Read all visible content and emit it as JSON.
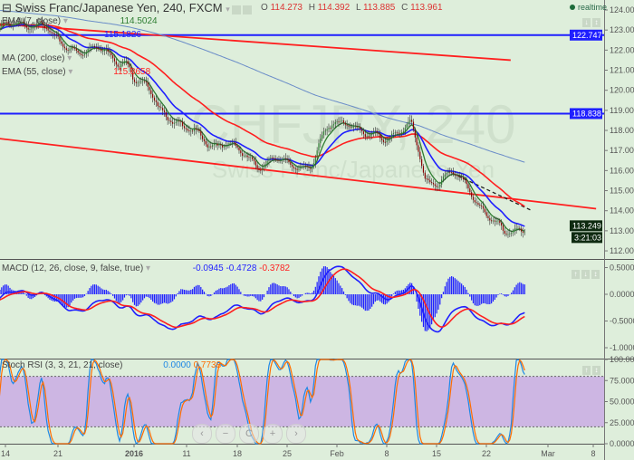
{
  "header": {
    "title": "Swiss Franc/Japanese Yen, 240, FXCM",
    "ohlc": {
      "o_label": "O",
      "o": "114.273",
      "h_label": "H",
      "h": "114.392",
      "l_label": "L",
      "l": "113.885",
      "c_label": "C",
      "c": "113.961"
    },
    "realtime": "realtime"
  },
  "watermark": {
    "symbol": "CHFJPY, 240",
    "name": "Swiss Franc/Japanese Yen"
  },
  "indicators": [
    {
      "label": "EMA (7, close)",
      "value": "114.5024",
      "color": "#2e7d32"
    },
    {
      "label": "",
      "value": "115.1826",
      "color": "#1f1fff"
    },
    {
      "label": "MA (200, close)",
      "value": "",
      "color": "#6a8cc8"
    },
    {
      "label": "EMA (55, close)",
      "value": "115.8658",
      "color": "#ff1f1f"
    }
  ],
  "macd": {
    "label": "MACD (12, 26, close, 9, false, true)",
    "values": [
      "-0.0945",
      "-0.4728",
      "-0.3782"
    ],
    "colors": [
      "#1f1fff",
      "#1f1fff",
      "#ff1f1f"
    ]
  },
  "stoch": {
    "label": "Stoch RSI (3, 3, 21, 21, close)",
    "values": [
      "0.0000",
      "0.7738"
    ],
    "colors": [
      "#1e88e5",
      "#ff6d00"
    ]
  },
  "price_axis": {
    "ticks": [
      "124.000",
      "123.000",
      "122.000",
      "121.000",
      "120.000",
      "119.000",
      "118.000",
      "117.000",
      "116.000",
      "115.000",
      "114.000",
      "113.000",
      "112.000"
    ],
    "hlines": [
      {
        "value": "122.747",
        "color": "#1f1fff"
      },
      {
        "value": "118.838",
        "color": "#1f1fff"
      }
    ],
    "last_price": "113.249",
    "countdown": "3:21:03"
  },
  "macd_axis": {
    "ticks": [
      "0.5000",
      "0.0000",
      "-0.5000",
      "-1.0000"
    ]
  },
  "stoch_axis": {
    "ticks": [
      "100.0000",
      "75.0000",
      "50.0000",
      "25.0000",
      "0.0000"
    ]
  },
  "time_axis": {
    "ticks": [
      "14",
      "21",
      "2016",
      "11",
      "18",
      "25",
      "Feb",
      "8",
      "15",
      "22",
      "Mar",
      "8"
    ]
  },
  "nav_buttons": [
    "‹",
    "−",
    "C",
    "+",
    "›"
  ],
  "chart_data": {
    "type": "candlestick",
    "timeframe": "240",
    "close_waypoints": [
      [
        "2015-12-13",
        123.0
      ],
      [
        "2015-12-19",
        123.5
      ],
      [
        "2015-12-21",
        122.3
      ],
      [
        "2015-12-26",
        122.0
      ],
      [
        "2015-12-31",
        121.5
      ],
      [
        "2016-01-01",
        120.6
      ],
      [
        "2016-01-06",
        118.8
      ],
      [
        "2016-01-08",
        118.0
      ],
      [
        "2016-01-12",
        117.5
      ],
      [
        "2016-01-19",
        116.4
      ],
      [
        "2016-01-26",
        116.3
      ],
      [
        "2016-01-29",
        118.4
      ],
      [
        "2016-01-31",
        118.6
      ],
      [
        "2016-02-03",
        117.5
      ],
      [
        "2016-02-09",
        118.2
      ],
      [
        "2016-02-11",
        115.5
      ],
      [
        "2016-02-15",
        115.8
      ],
      [
        "2016-02-19",
        114.3
      ],
      [
        "2016-02-22",
        112.7
      ],
      [
        "2016-02-25",
        113.25
      ]
    ],
    "trendlines": [
      {
        "color": "#ff1f1f",
        "from": [
          "2015-12-13",
          123.3
        ],
        "to": [
          "2016-02-23",
          121.5
        ]
      },
      {
        "color": "#ff1f1f",
        "from": [
          "2015-12-13",
          117.6
        ],
        "to": [
          "2016-03-06",
          114.1
        ]
      },
      {
        "color": "#222222",
        "style": "dashed",
        "from": [
          "2016-02-14",
          116.0
        ],
        "to": [
          "2016-02-26",
          114.0
        ]
      }
    ],
    "stoch_band": [
      20,
      80
    ],
    "ylim": [
      112,
      124
    ]
  }
}
